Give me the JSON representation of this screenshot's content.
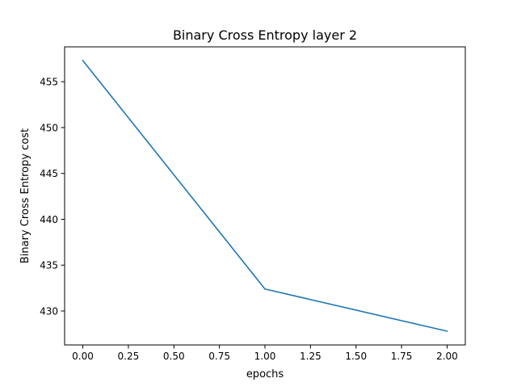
{
  "chart_data": {
    "type": "line",
    "title": "Binary Cross Entropy layer 2",
    "xlabel": "epochs",
    "ylabel": "Binary Cross Entropy cost",
    "x": [
      0,
      1,
      2
    ],
    "series": [
      {
        "values": [
          457.3,
          432.4,
          427.8
        ],
        "color": "#1f77b4"
      }
    ],
    "xlim": [
      -0.1,
      2.1
    ],
    "ylim": [
      426.3,
      458.8
    ],
    "x_ticks": [
      0.0,
      0.25,
      0.5,
      0.75,
      1.0,
      1.25,
      1.5,
      1.75,
      2.0
    ],
    "x_tick_labels": [
      "0.00",
      "0.25",
      "0.50",
      "0.75",
      "1.00",
      "1.25",
      "1.50",
      "1.75",
      "2.00"
    ],
    "y_ticks": [
      430,
      435,
      440,
      445,
      450,
      455
    ],
    "y_tick_labels": [
      "430",
      "435",
      "440",
      "445",
      "450",
      "455"
    ],
    "grid": false,
    "legend": "none"
  }
}
